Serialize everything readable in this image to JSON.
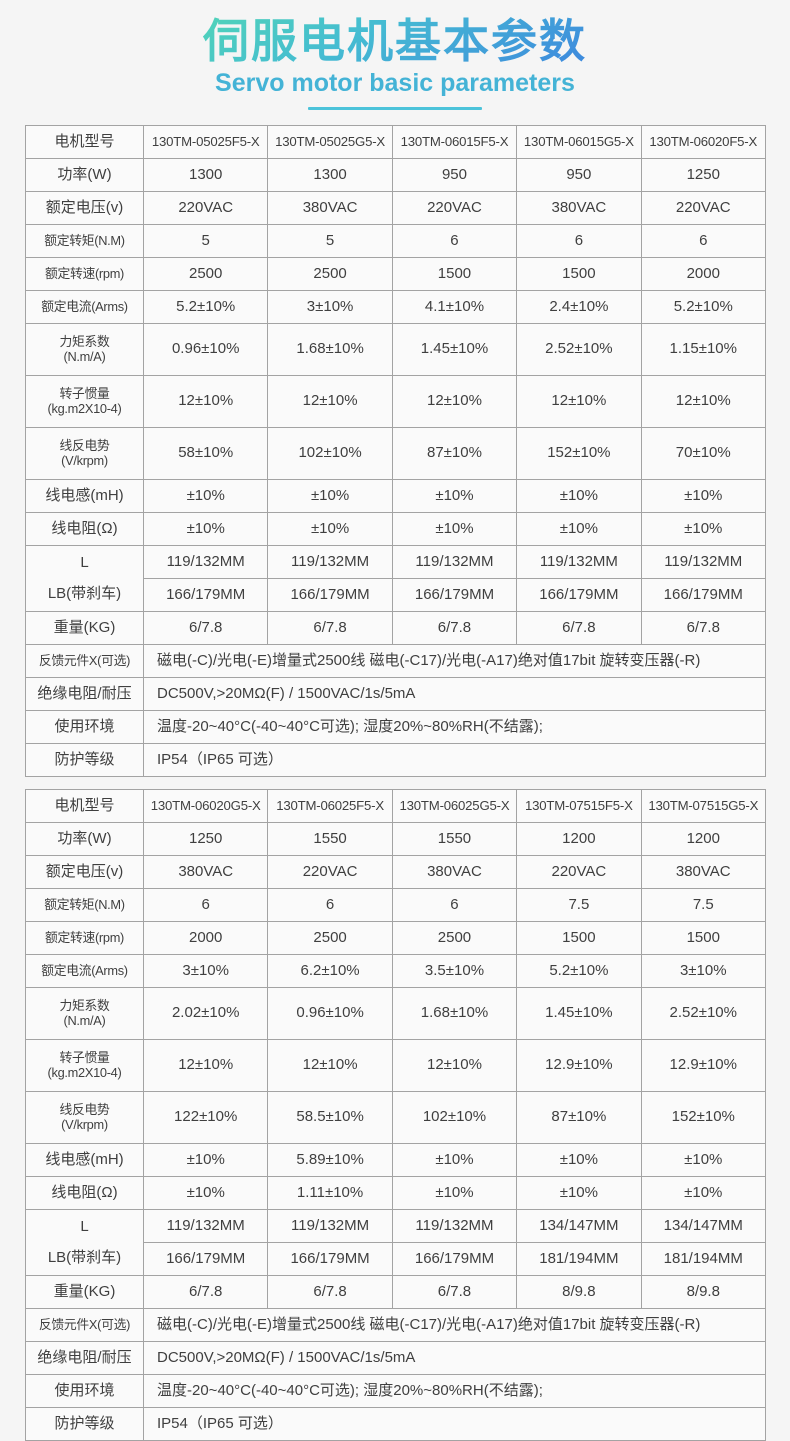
{
  "header": {
    "title": "伺服电机基本参数",
    "subtitle": "Servo motor basic parameters"
  },
  "colors": {
    "title_gradient_start": "#50d3b9",
    "title_gradient_end": "#3e8cdd",
    "subtitle_text": "#44b3d6",
    "underline": "#4cc3da",
    "table_border": "#a3a3a3",
    "cell_text": "#3f3f3f",
    "page_background": "#f5f5f5"
  },
  "tables": [
    {
      "rows": [
        {
          "type": "single",
          "cls": "model",
          "label": [
            "电机型号"
          ],
          "values": [
            "130TM-05025F5-X",
            "130TM-05025G5-X",
            "130TM-06015F5-X",
            "130TM-06015G5-X",
            "130TM-06020F5-X"
          ]
        },
        {
          "type": "single",
          "label": [
            "功率(W)"
          ],
          "values": [
            "1300",
            "1300",
            "950",
            "950",
            "1250"
          ]
        },
        {
          "type": "single",
          "label": [
            "额定电压(v)"
          ],
          "values": [
            "220VAC",
            "380VAC",
            "220VAC",
            "380VAC",
            "220VAC"
          ]
        },
        {
          "type": "single",
          "label": [
            "额定转矩(N.M)"
          ],
          "values": [
            "5",
            "5",
            "6",
            "6",
            "6"
          ]
        },
        {
          "type": "single",
          "label": [
            "额定转速(rpm)"
          ],
          "values": [
            "2500",
            "2500",
            "1500",
            "1500",
            "2000"
          ]
        },
        {
          "type": "single",
          "label": [
            "额定电流(Arms)"
          ],
          "values": [
            "5.2±10%",
            "3±10%",
            "4.1±10%",
            "2.4±10%",
            "5.2±10%"
          ]
        },
        {
          "type": "single",
          "label": [
            "力矩系数",
            "(N.m/A)"
          ],
          "values": [
            "0.96±10%",
            "1.68±10%",
            "1.45±10%",
            "2.52±10%",
            "1.15±10%"
          ]
        },
        {
          "type": "single",
          "label": [
            "转子惯量",
            "(kg.m2X10-4)"
          ],
          "values": [
            "12±10%",
            "12±10%",
            "12±10%",
            "12±10%",
            "12±10%"
          ]
        },
        {
          "type": "single",
          "label": [
            "线反电势",
            "(V/krpm)"
          ],
          "values": [
            "58±10%",
            "102±10%",
            "87±10%",
            "152±10%",
            "70±10%"
          ]
        },
        {
          "type": "single",
          "label": [
            "线电感(mH)"
          ],
          "values": [
            "±10%",
            "±10%",
            "±10%",
            "±10%",
            "±10%"
          ]
        },
        {
          "type": "single",
          "label": [
            "线电阻(Ω)"
          ],
          "values": [
            "±10%",
            "±10%",
            "±10%",
            "±10%",
            "±10%"
          ]
        },
        {
          "type": "double",
          "labels": [
            "L",
            "LB(带刹车)"
          ],
          "top": [
            "119/132MM",
            "119/132MM",
            "119/132MM",
            "119/132MM",
            "119/132MM"
          ],
          "bottom": [
            "166/179MM",
            "166/179MM",
            "166/179MM",
            "166/179MM",
            "166/179MM"
          ]
        },
        {
          "type": "single",
          "label": [
            "重量(KG)"
          ],
          "values": [
            "6/7.8",
            "6/7.8",
            "6/7.8",
            "6/7.8",
            "6/7.8"
          ]
        },
        {
          "type": "span",
          "label": "反馈元件X(可选)",
          "value": "磁电(-C)/光电(-E)增量式2500线  磁电(-C17)/光电(-A17)绝对值17bit  旋转变压器(-R)"
        },
        {
          "type": "span",
          "label": "绝缘电阻/耐压",
          "value": "DC500V,>20MΩ(F) / 1500VAC/1s/5mA"
        },
        {
          "type": "span",
          "label": "使用环境",
          "value": "温度-20~40°C(-40~40°C可选); 湿度20%~80%RH(不结露);"
        },
        {
          "type": "span",
          "label": "防护等级",
          "value": "IP54（IP65 可选）"
        }
      ]
    },
    {
      "rows": [
        {
          "type": "single",
          "cls": "model",
          "label": [
            "电机型号"
          ],
          "values": [
            "130TM-06020G5-X",
            "130TM-06025F5-X",
            "130TM-06025G5-X",
            "130TM-07515F5-X",
            "130TM-07515G5-X"
          ]
        },
        {
          "type": "single",
          "label": [
            "功率(W)"
          ],
          "values": [
            "1250",
            "1550",
            "1550",
            "1200",
            "1200"
          ]
        },
        {
          "type": "single",
          "label": [
            "额定电压(v)"
          ],
          "values": [
            "380VAC",
            "220VAC",
            "380VAC",
            "220VAC",
            "380VAC"
          ]
        },
        {
          "type": "single",
          "label": [
            "额定转矩(N.M)"
          ],
          "values": [
            "6",
            "6",
            "6",
            "7.5",
            "7.5"
          ]
        },
        {
          "type": "single",
          "label": [
            "额定转速(rpm)"
          ],
          "values": [
            "2000",
            "2500",
            "2500",
            "1500",
            "1500"
          ]
        },
        {
          "type": "single",
          "label": [
            "额定电流(Arms)"
          ],
          "values": [
            "3±10%",
            "6.2±10%",
            "3.5±10%",
            "5.2±10%",
            "3±10%"
          ]
        },
        {
          "type": "single",
          "label": [
            "力矩系数",
            "(N.m/A)"
          ],
          "values": [
            "2.02±10%",
            "0.96±10%",
            "1.68±10%",
            "1.45±10%",
            "2.52±10%"
          ]
        },
        {
          "type": "single",
          "label": [
            "转子惯量",
            "(kg.m2X10-4)"
          ],
          "values": [
            "12±10%",
            "12±10%",
            "12±10%",
            "12.9±10%",
            "12.9±10%"
          ]
        },
        {
          "type": "single",
          "label": [
            "线反电势",
            "(V/krpm)"
          ],
          "values": [
            "122±10%",
            "58.5±10%",
            "102±10%",
            "87±10%",
            "152±10%"
          ]
        },
        {
          "type": "single",
          "label": [
            "线电感(mH)"
          ],
          "values": [
            "±10%",
            "5.89±10%",
            "±10%",
            "±10%",
            "±10%"
          ]
        },
        {
          "type": "single",
          "label": [
            "线电阻(Ω)"
          ],
          "values": [
            "±10%",
            "1.11±10%",
            "±10%",
            "±10%",
            "±10%"
          ]
        },
        {
          "type": "double",
          "labels": [
            "L",
            "LB(带刹车)"
          ],
          "top": [
            "119/132MM",
            "119/132MM",
            "119/132MM",
            "134/147MM",
            "134/147MM"
          ],
          "bottom": [
            "166/179MM",
            "166/179MM",
            "166/179MM",
            "181/194MM",
            "181/194MM"
          ]
        },
        {
          "type": "single",
          "label": [
            "重量(KG)"
          ],
          "values": [
            "6/7.8",
            "6/7.8",
            "6/7.8",
            "8/9.8",
            "8/9.8"
          ]
        },
        {
          "type": "span",
          "label": "反馈元件X(可选)",
          "value": "磁电(-C)/光电(-E)增量式2500线  磁电(-C17)/光电(-A17)绝对值17bit  旋转变压器(-R)"
        },
        {
          "type": "span",
          "label": "绝缘电阻/耐压",
          "value": "DC500V,>20MΩ(F) / 1500VAC/1s/5mA"
        },
        {
          "type": "span",
          "label": "使用环境",
          "value": "温度-20~40°C(-40~40°C可选); 湿度20%~80%RH(不结露);"
        },
        {
          "type": "span",
          "label": "防护等级",
          "value": "IP54（IP65 可选）"
        }
      ]
    }
  ]
}
